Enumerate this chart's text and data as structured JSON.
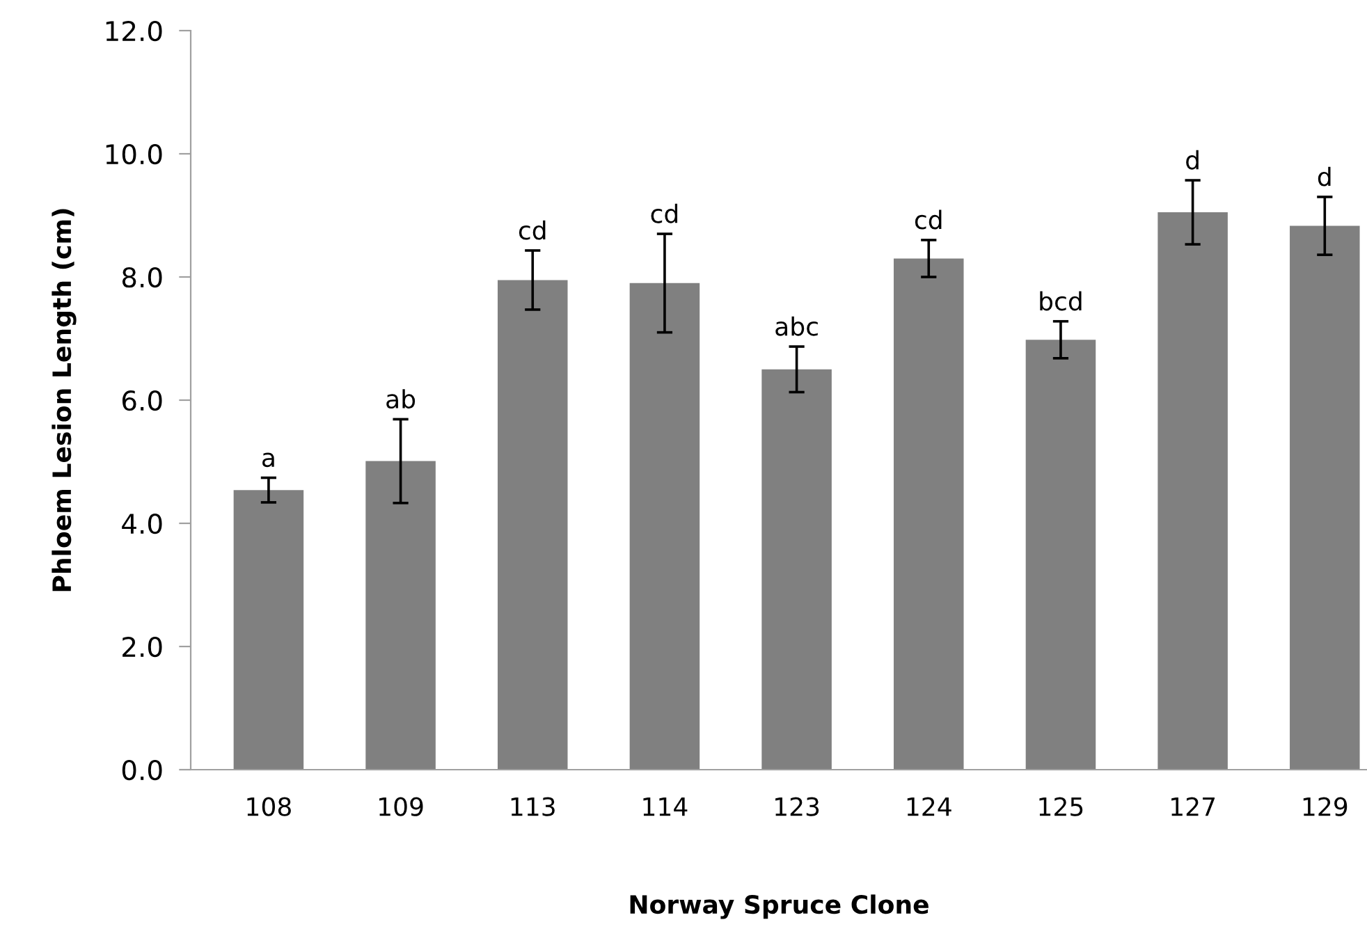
{
  "chart_data": {
    "type": "bar",
    "xlabel": "Norway Spruce Clone",
    "ylabel": "Phloem Lesion Length (cm)",
    "categories": [
      "108",
      "109",
      "113",
      "114",
      "123",
      "124",
      "125",
      "127",
      "129"
    ],
    "values": [
      4.54,
      5.01,
      7.95,
      7.9,
      6.5,
      8.3,
      6.98,
      9.05,
      8.83
    ],
    "errors": [
      0.2,
      0.68,
      0.48,
      0.8,
      0.37,
      0.3,
      0.3,
      0.52,
      0.47
    ],
    "color": "#808080",
    "ylim": [
      0,
      12
    ],
    "yticks": [
      {
        "value": 0,
        "label": "0.0"
      },
      {
        "value": 2,
        "label": "2.0"
      },
      {
        "value": 4,
        "label": "4.0"
      },
      {
        "value": 6,
        "label": "6.0"
      },
      {
        "value": 8,
        "label": "8.0"
      },
      {
        "value": 10,
        "label": "10.0"
      },
      {
        "value": 12,
        "label": "12.0"
      }
    ],
    "grid": false,
    "annotations": [
      {
        "text": "a",
        "x": "108",
        "y": 4.74
      },
      {
        "text": "ab",
        "x": "109",
        "y": 5.69
      },
      {
        "text": "cd",
        "x": "113",
        "y": 8.43
      },
      {
        "text": "cd",
        "x": "114",
        "y": 8.7
      },
      {
        "text": "abc",
        "x": "123",
        "y": 6.87
      },
      {
        "text": "cd",
        "x": "124",
        "y": 8.6
      },
      {
        "text": "bcd",
        "x": "125",
        "y": 7.28
      },
      {
        "text": "d",
        "x": "127",
        "y": 9.57
      },
      {
        "text": "d",
        "x": "129",
        "y": 9.3
      }
    ]
  }
}
